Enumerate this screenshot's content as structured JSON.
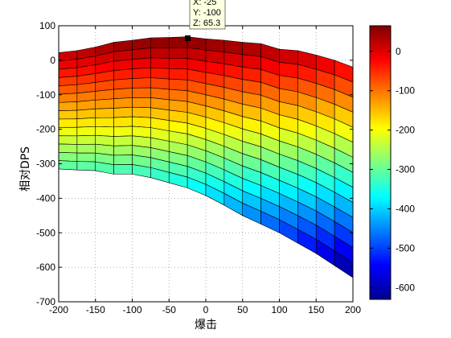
{
  "chart_data": {
    "type": "heatmap",
    "xlabel": "爆击",
    "ylabel": "相对DPS",
    "xlim": [
      -200,
      200
    ],
    "ylim": [
      -700,
      100
    ],
    "x_ticks": [
      "-200",
      "-150",
      "-100",
      "-50",
      "0",
      "50",
      "100",
      "150",
      "200"
    ],
    "y_ticks": [
      "100",
      "0",
      "-100",
      "-200",
      "-300",
      "-400",
      "-500",
      "-600",
      "-700"
    ],
    "x": [
      -200,
      -175,
      -150,
      -125,
      -100,
      -75,
      -50,
      -25,
      0,
      25,
      50,
      75,
      100,
      125,
      150,
      175,
      200
    ],
    "top_surface_y": [
      22,
      28,
      38,
      52,
      58,
      65,
      66,
      68,
      62,
      58,
      52,
      48,
      32,
      28,
      15,
      0,
      -20
    ],
    "bottom_surface_y": [
      -315,
      -318,
      -320,
      -330,
      -330,
      -340,
      -355,
      -370,
      -392,
      -420,
      -450,
      -475,
      -500,
      -530,
      -560,
      -595,
      -630
    ],
    "grid": "on",
    "colorbar": {
      "colormap": "jet",
      "ticks": [
        "0",
        "-100",
        "-200",
        "-300",
        "-400",
        "-500",
        "-600"
      ],
      "min": -630,
      "max": 65
    },
    "datatip": {
      "x_label": "X: -25",
      "y_label": "Y: -100",
      "z_label": "Z: 65.3"
    }
  }
}
